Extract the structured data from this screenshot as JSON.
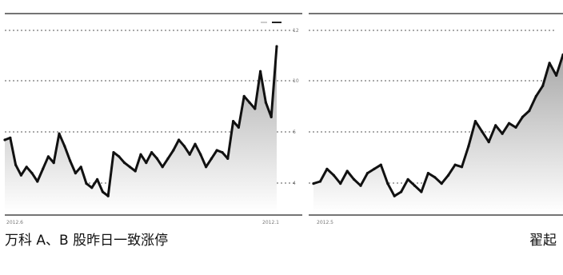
{
  "captions": {
    "left": "万科 A、B 股昨日一致涨停",
    "right": "翟起"
  },
  "chart_data": [
    {
      "type": "area",
      "title": "",
      "x_start_label": "2012.6",
      "x_end_label": "2012.1",
      "y_ticks": [
        "4",
        "6",
        "10",
        "12"
      ],
      "ylim": [
        3,
        13
      ],
      "grid": "horizontal dotted",
      "legend": "top-right",
      "series": [
        {
          "values": [
            6.5,
            6.6,
            5.3,
            4.8,
            5.2,
            4.9,
            4.5,
            5.1,
            5.7,
            5.4,
            6.8,
            6.2,
            5.5,
            4.9,
            5.2,
            4.4,
            4.2,
            4.6,
            4.0,
            3.8,
            5.9,
            5.7,
            5.4,
            5.2,
            5.0,
            5.8,
            5.4,
            5.9,
            5.6,
            5.2,
            5.6,
            6.0,
            6.5,
            6.2,
            5.8,
            6.3,
            5.8,
            5.2,
            5.6,
            6.0,
            5.9,
            5.6,
            7.4,
            7.1,
            8.6,
            8.3,
            8.0,
            9.8,
            8.3,
            7.6,
            11.0
          ]
        }
      ]
    },
    {
      "type": "area",
      "title": "",
      "x_start_label": "2012.5",
      "ylim": [
        3,
        13
      ],
      "grid": "horizontal dotted",
      "series": [
        {
          "values": [
            4.4,
            4.5,
            5.1,
            4.8,
            4.4,
            5.0,
            4.6,
            4.3,
            4.9,
            5.1,
            5.3,
            4.4,
            3.8,
            4.0,
            4.6,
            4.3,
            4.0,
            4.9,
            4.7,
            4.4,
            4.8,
            5.3,
            5.2,
            6.2,
            7.4,
            6.9,
            6.4,
            7.2,
            6.8,
            7.3,
            7.1,
            7.6,
            7.9,
            8.6,
            9.1,
            10.2,
            9.6,
            10.6
          ]
        }
      ]
    }
  ]
}
